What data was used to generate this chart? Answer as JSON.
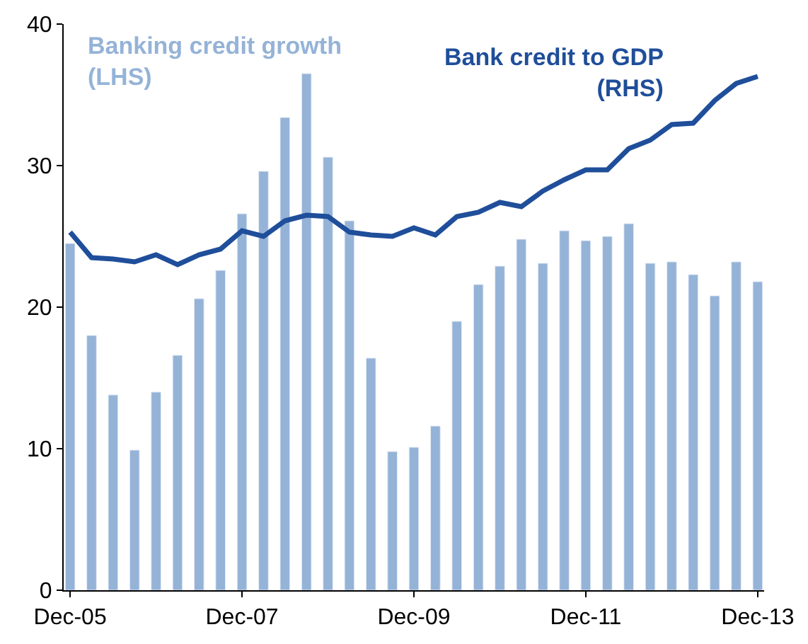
{
  "chart_data": {
    "type": "bar",
    "categories": [
      "Dec-05",
      null,
      null,
      null,
      null,
      null,
      null,
      null,
      "Dec-07",
      null,
      null,
      null,
      null,
      null,
      null,
      null,
      "Dec-09",
      null,
      null,
      null,
      null,
      null,
      null,
      null,
      "Dec-11",
      null,
      null,
      null,
      null,
      null,
      null,
      null,
      "Dec-13"
    ],
    "series": [
      {
        "name": "Banking credit growth\n(LHS)",
        "color": "#95b3d7",
        "values": [
          24.5,
          18.0,
          13.8,
          9.9,
          14.0,
          16.6,
          20.6,
          22.6,
          26.6,
          29.6,
          33.4,
          36.5,
          30.6,
          26.1,
          16.4,
          9.8,
          10.1,
          11.6,
          19.0,
          21.6,
          22.9,
          24.8,
          23.1,
          25.4,
          24.7,
          25.0,
          25.9,
          23.1,
          23.2,
          22.3,
          20.8,
          23.2,
          21.8
        ]
      },
      {
        "name": "Bank credit to GDP\n(RHS)",
        "type": "line",
        "color": "#1f4e9a",
        "values": [
          25.3,
          23.5,
          23.4,
          23.2,
          23.7,
          23.0,
          23.7,
          24.1,
          25.4,
          25.0,
          26.1,
          26.5,
          26.4,
          25.3,
          25.1,
          25.0,
          25.6,
          25.1,
          26.4,
          26.7,
          27.4,
          27.1,
          28.2,
          29.0,
          29.7,
          29.7,
          31.2,
          31.8,
          32.9,
          33.0,
          34.6,
          35.8,
          36.3
        ]
      }
    ],
    "ylim": [
      0,
      40
    ],
    "yticks": [
      0,
      10,
      20,
      30,
      40
    ]
  }
}
